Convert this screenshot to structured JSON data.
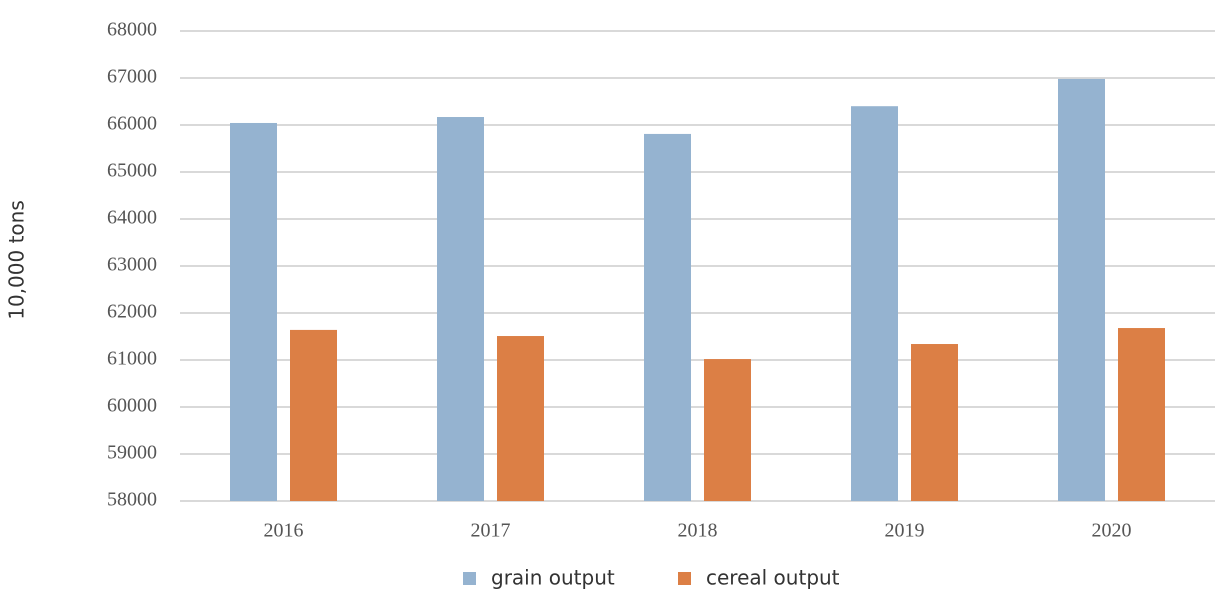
{
  "chart_data": {
    "type": "bar",
    "y_label": "10,000 tons",
    "categories": [
      "2016",
      "2017",
      "2018",
      "2019",
      "2020"
    ],
    "series": [
      {
        "name": "grain output",
        "color": "#95b3d0",
        "values": [
          66043,
          66170,
          65810,
          66400,
          66980
        ]
      },
      {
        "name": "cereal output",
        "color": "#dc7f45",
        "values": [
          61640,
          61510,
          61020,
          61340,
          61680
        ]
      }
    ],
    "ylim": [
      58000,
      68000
    ],
    "yticks": [
      58000,
      59000,
      60000,
      61000,
      62000,
      63000,
      64000,
      65000,
      66000,
      67000,
      68000
    ],
    "grid": true,
    "legend": "bottom"
  }
}
